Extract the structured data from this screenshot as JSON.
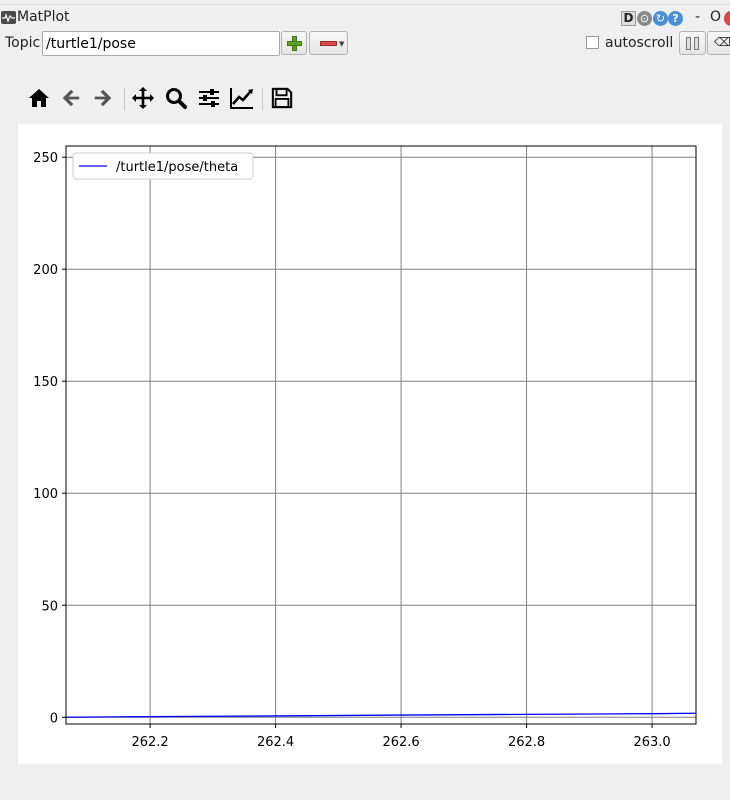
{
  "window": {
    "title": "MatPlot",
    "controls": [
      "D",
      "⊙",
      "↻",
      "?"
    ],
    "min_glyph": "-",
    "max_glyph": "O"
  },
  "topic": {
    "label": "Topic",
    "value": "/turtle1/pose"
  },
  "autoscroll": {
    "label": "autoscroll",
    "checked": false
  },
  "toolbar_icons": [
    "home-icon",
    "back-arrow-icon",
    "forward-arrow-icon",
    "pan-icon",
    "zoom-icon",
    "configure-subplots-icon",
    "edit-axis-icon",
    "save-icon"
  ],
  "colors": {
    "series": "#0000ff",
    "grid": "#808080"
  },
  "chart_data": {
    "type": "line",
    "title": "",
    "xlabel": "",
    "ylabel": "",
    "xlim": [
      262.066,
      263.07
    ],
    "ylim": [
      -3,
      255
    ],
    "xticks": [
      "262.2",
      "262.4",
      "262.6",
      "262.8",
      "263.0"
    ],
    "xtick_values": [
      262.2,
      262.4,
      262.6,
      262.8,
      263.0
    ],
    "yticks": [
      "0",
      "50",
      "100",
      "150",
      "200",
      "250"
    ],
    "ytick_values": [
      0,
      50,
      100,
      150,
      200,
      250
    ],
    "grid": true,
    "legend_position": "top-left",
    "series": [
      {
        "name": "/turtle1/pose/theta",
        "x": [
          262.066,
          262.2,
          262.4,
          262.6,
          262.8,
          263.0,
          263.07
        ],
        "y": [
          0.0,
          0.3,
          0.6,
          1.0,
          1.3,
          1.6,
          1.8
        ]
      }
    ]
  }
}
